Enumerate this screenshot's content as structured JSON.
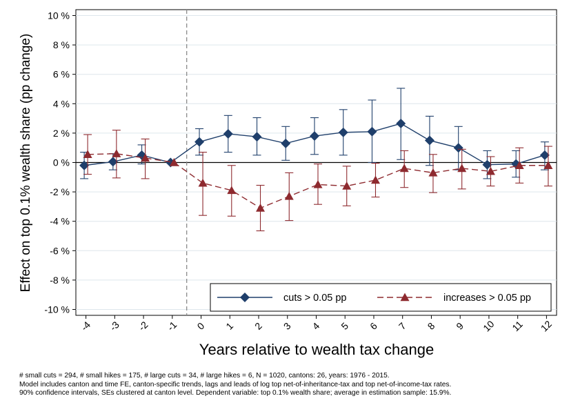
{
  "chart_data": {
    "type": "line",
    "title": "",
    "xlabel": "Years relative to wealth tax change",
    "ylabel": "Effect on top 0.1% wealth share (pp change)",
    "x": [
      -4,
      -3,
      -2,
      -1,
      0,
      1,
      2,
      3,
      4,
      5,
      6,
      7,
      8,
      9,
      10,
      11,
      12
    ],
    "xticks": [
      "-4",
      "-3",
      "-2",
      "-1",
      "0",
      "1",
      "2",
      "3",
      "4",
      "5",
      "6",
      "7",
      "8",
      "9",
      "10",
      "11",
      "12"
    ],
    "yticks": [
      -10,
      -8,
      -6,
      -4,
      -2,
      0,
      2,
      4,
      6,
      8,
      10
    ],
    "ytick_labels": [
      "-10 %",
      "-8 %",
      "-6 %",
      "-4 %",
      "-2 %",
      "0 %",
      "2 %",
      "4 %",
      "6 %",
      "8 %",
      "10 %"
    ],
    "ylim": [
      -10.4,
      10.4
    ],
    "xlim": [
      -4.35,
      12.35
    ],
    "event_line_x": -0.5,
    "legend_position": "bottom-right",
    "series": [
      {
        "name": "cuts > 0.05 pp",
        "color": "#1f3f6b",
        "marker": "diamond",
        "line_style": "solid",
        "x_offset": -0.06,
        "values": [
          -0.2,
          0.05,
          0.5,
          0.0,
          1.4,
          1.95,
          1.75,
          1.3,
          1.8,
          2.05,
          2.1,
          2.65,
          1.5,
          1.0,
          -0.15,
          -0.1,
          0.5
        ],
        "ci_low": [
          -1.1,
          -0.5,
          -0.1,
          0.0,
          0.5,
          0.7,
          0.5,
          0.15,
          0.55,
          0.5,
          0.0,
          0.2,
          -0.2,
          -0.5,
          -1.1,
          -1.0,
          -0.5
        ],
        "ci_high": [
          0.7,
          0.6,
          1.2,
          0.0,
          2.3,
          3.2,
          3.05,
          2.45,
          3.05,
          3.6,
          4.25,
          5.05,
          3.15,
          2.45,
          0.8,
          0.8,
          1.4
        ]
      },
      {
        "name": "increases > 0.05 pp",
        "color": "#8e2a2f",
        "marker": "triangle",
        "line_style": "dashed",
        "x_offset": 0.06,
        "values": [
          0.55,
          0.6,
          0.3,
          0.0,
          -1.4,
          -1.9,
          -3.1,
          -2.3,
          -1.5,
          -1.6,
          -1.2,
          -0.4,
          -0.7,
          -0.4,
          -0.6,
          -0.2,
          -0.2
        ],
        "ci_low": [
          -0.8,
          -1.05,
          -1.1,
          0.0,
          -3.6,
          -3.65,
          -4.65,
          -3.95,
          -2.85,
          -2.95,
          -2.35,
          -1.7,
          -2.05,
          -1.8,
          -1.6,
          -1.4,
          -1.6
        ],
        "ci_high": [
          1.9,
          2.2,
          1.6,
          0.0,
          0.7,
          -0.2,
          -1.55,
          -0.7,
          -0.1,
          -0.25,
          -0.05,
          0.8,
          0.55,
          0.9,
          0.4,
          1.0,
          1.1
        ]
      }
    ]
  },
  "notes": [
    "# small cuts = 294, # small hikes = 175, # large cuts = 34, # large hikes = 6, N = 1020, cantons: 26, years: 1976 - 2015.",
    "Model includes canton and time FE, canton-specific trends, lags and leads of log top net-of-inheritance-tax and top net-of-income-tax rates.",
    "90% confidence intervals, SEs clustered at canton level. Dependent variable: top 0.1% wealth share; average in estimation sample: 15.9%."
  ]
}
